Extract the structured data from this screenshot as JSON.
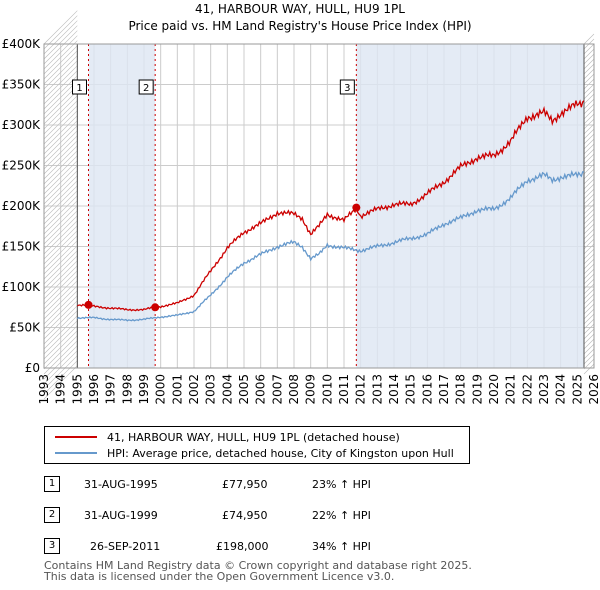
{
  "title_line1": "41, HARBOUR WAY, HULL, HU9 1PL",
  "title_line2": "Price paid vs. HM Land Registry's House Price Index (HPI)",
  "colors": {
    "property": "#cc0000",
    "hpi": "#6699cc",
    "shade": "#dde6f3",
    "grid": "#cccccc"
  },
  "legend": {
    "property": "41, HARBOUR WAY, HULL, HU9 1PL (detached house)",
    "hpi": "HPI: Average price, detached house, City of Kingston upon Hull"
  },
  "transactions": [
    {
      "num": "1",
      "date": "31-AUG-1995",
      "price": "£77,950",
      "hpi": "23% ↑ HPI"
    },
    {
      "num": "2",
      "date": "31-AUG-1999",
      "price": "£74,950",
      "hpi": "22% ↑ HPI"
    },
    {
      "num": "3",
      "date": "26-SEP-2011",
      "price": "£198,000",
      "hpi": "34% ↑ HPI"
    }
  ],
  "footer_line1": "Contains HM Land Registry data © Crown copyright and database right 2025.",
  "footer_line2": "This data is licensed under the Open Government Licence v3.0.",
  "chart_data": {
    "type": "line",
    "title": "41, HARBOUR WAY, HULL, HU9 1PL — Price paid vs. HM Land Registry's House Price Index (HPI)",
    "xlim": [
      1993,
      2026
    ],
    "ylim": [
      0,
      400000
    ],
    "x_ticks": [
      1993,
      1994,
      1995,
      1996,
      1997,
      1998,
      1999,
      2000,
      2001,
      2002,
      2003,
      2004,
      2005,
      2006,
      2007,
      2008,
      2009,
      2010,
      2011,
      2012,
      2013,
      2014,
      2015,
      2016,
      2017,
      2018,
      2019,
      2020,
      2021,
      2022,
      2023,
      2024,
      2025,
      2026
    ],
    "y_ticks": [
      0,
      50000,
      100000,
      150000,
      200000,
      250000,
      300000,
      350000,
      400000
    ],
    "y_tick_labels": [
      "£0",
      "£50K",
      "£100K",
      "£150K",
      "£200K",
      "£250K",
      "£300K",
      "£350K",
      "£400K"
    ],
    "data_range": [
      1995.0,
      2025.4
    ],
    "sales": [
      {
        "label": "1",
        "x": 1995.67,
        "y": 77950
      },
      {
        "label": "2",
        "x": 1999.67,
        "y": 74950
      },
      {
        "label": "3",
        "x": 2011.74,
        "y": 198000
      }
    ],
    "series": [
      {
        "name": "41, HARBOUR WAY, HULL, HU9 1PL (detached house)",
        "x": [
          1995.0,
          1995.67,
          1996,
          1997,
          1998,
          1999,
          1999.67,
          2000,
          2001,
          2002,
          2003,
          2004,
          2005,
          2006,
          2007,
          2008,
          2008.5,
          2009,
          2009.5,
          2010,
          2011,
          2011.74,
          2012,
          2013,
          2014,
          2015,
          2016,
          2017,
          2018,
          2019,
          2020,
          2021,
          2022,
          2023,
          2023.5,
          2024,
          2025,
          2025.4
        ],
        "y": [
          78000,
          77950,
          76000,
          74000,
          72000,
          72000,
          74950,
          76000,
          80000,
          90000,
          120000,
          148000,
          168000,
          178000,
          192000,
          190000,
          185000,
          165000,
          175000,
          190000,
          182000,
          198000,
          188000,
          196000,
          202000,
          202000,
          215000,
          230000,
          248000,
          260000,
          262000,
          280000,
          310000,
          315000,
          305000,
          315000,
          325000,
          330000
        ]
      },
      {
        "name": "HPI: Average price, detached house, City of Kingston upon Hull",
        "x": [
          1995.0,
          1996,
          1997,
          1998,
          1999,
          2000,
          2001,
          2002,
          2003,
          2004,
          2005,
          2006,
          2007,
          2008,
          2008.5,
          2009,
          2009.5,
          2010,
          2011,
          2012,
          2013,
          2014,
          2015,
          2016,
          2017,
          2018,
          2019,
          2020,
          2021,
          2022,
          2023,
          2023.5,
          2024,
          2025,
          2025.4
        ],
        "y": [
          62000,
          62000,
          60000,
          59000,
          60000,
          63000,
          65000,
          70000,
          90000,
          112000,
          130000,
          140000,
          150000,
          155000,
          150000,
          135000,
          140000,
          152000,
          148000,
          145000,
          150000,
          155000,
          160000,
          165000,
          178000,
          185000,
          195000,
          196000,
          210000,
          232000,
          238000,
          232000,
          236000,
          238000,
          242000
        ]
      }
    ]
  }
}
